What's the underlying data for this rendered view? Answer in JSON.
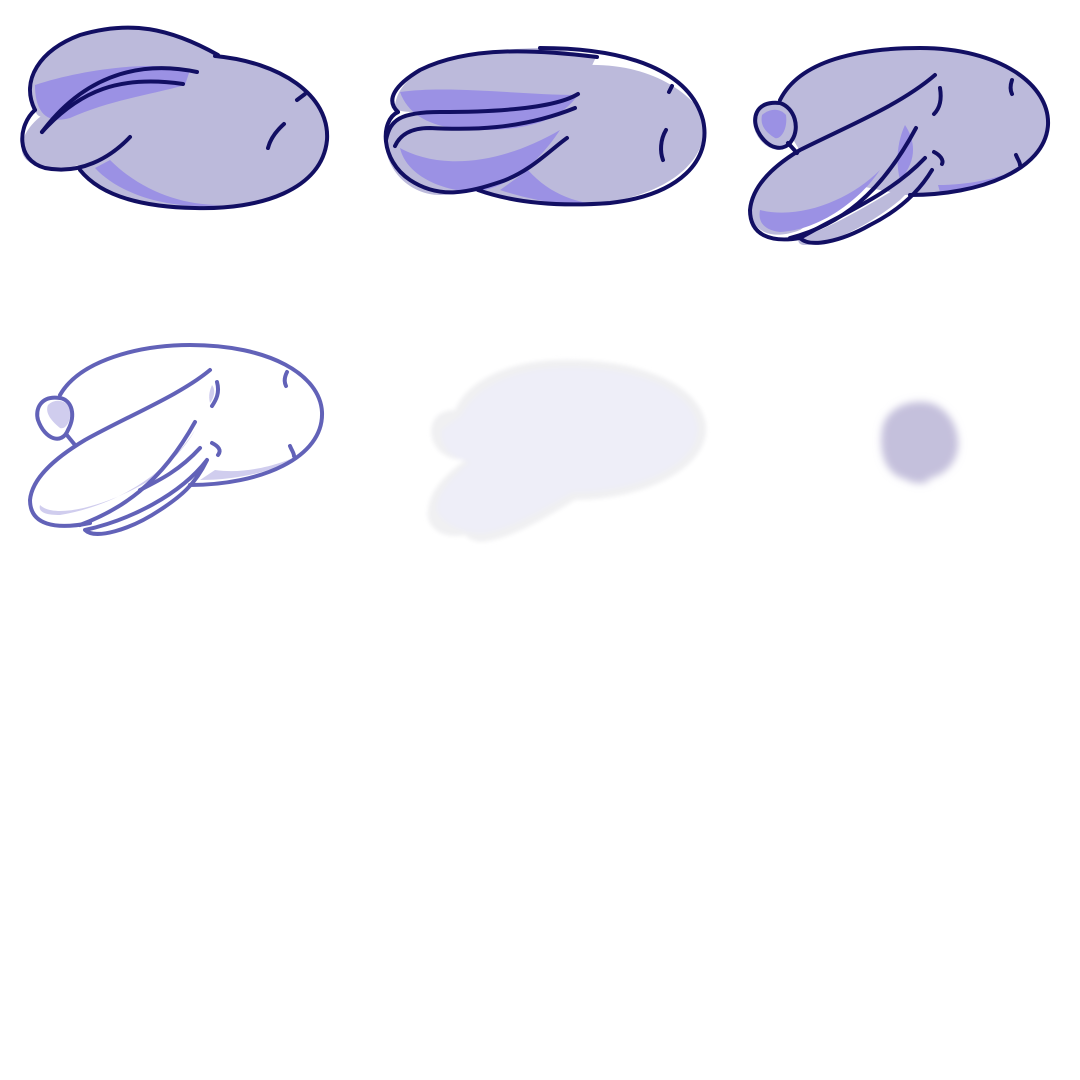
{
  "palette": {
    "background": "#ffffff",
    "fill_light": "#bcbadb",
    "fill_shade": "#9b91e4",
    "outline_dark": "#120f63",
    "outline_light": "#6262b8",
    "ghost_fill": "#eeeef8",
    "ghost_edge": "#f0f0f2",
    "blur_blob": "#c4c0dc"
  },
  "sprites": [
    {
      "id": "bunny-ears-drooped",
      "variant": "filled"
    },
    {
      "id": "bunny-ears-swept",
      "variant": "filled"
    },
    {
      "id": "bunny-ears-down",
      "variant": "filled"
    },
    {
      "id": "bunny-outline",
      "variant": "outline"
    },
    {
      "id": "bunny-ghost",
      "variant": "ghost"
    },
    {
      "id": "bunny-blur",
      "variant": "blur"
    }
  ]
}
